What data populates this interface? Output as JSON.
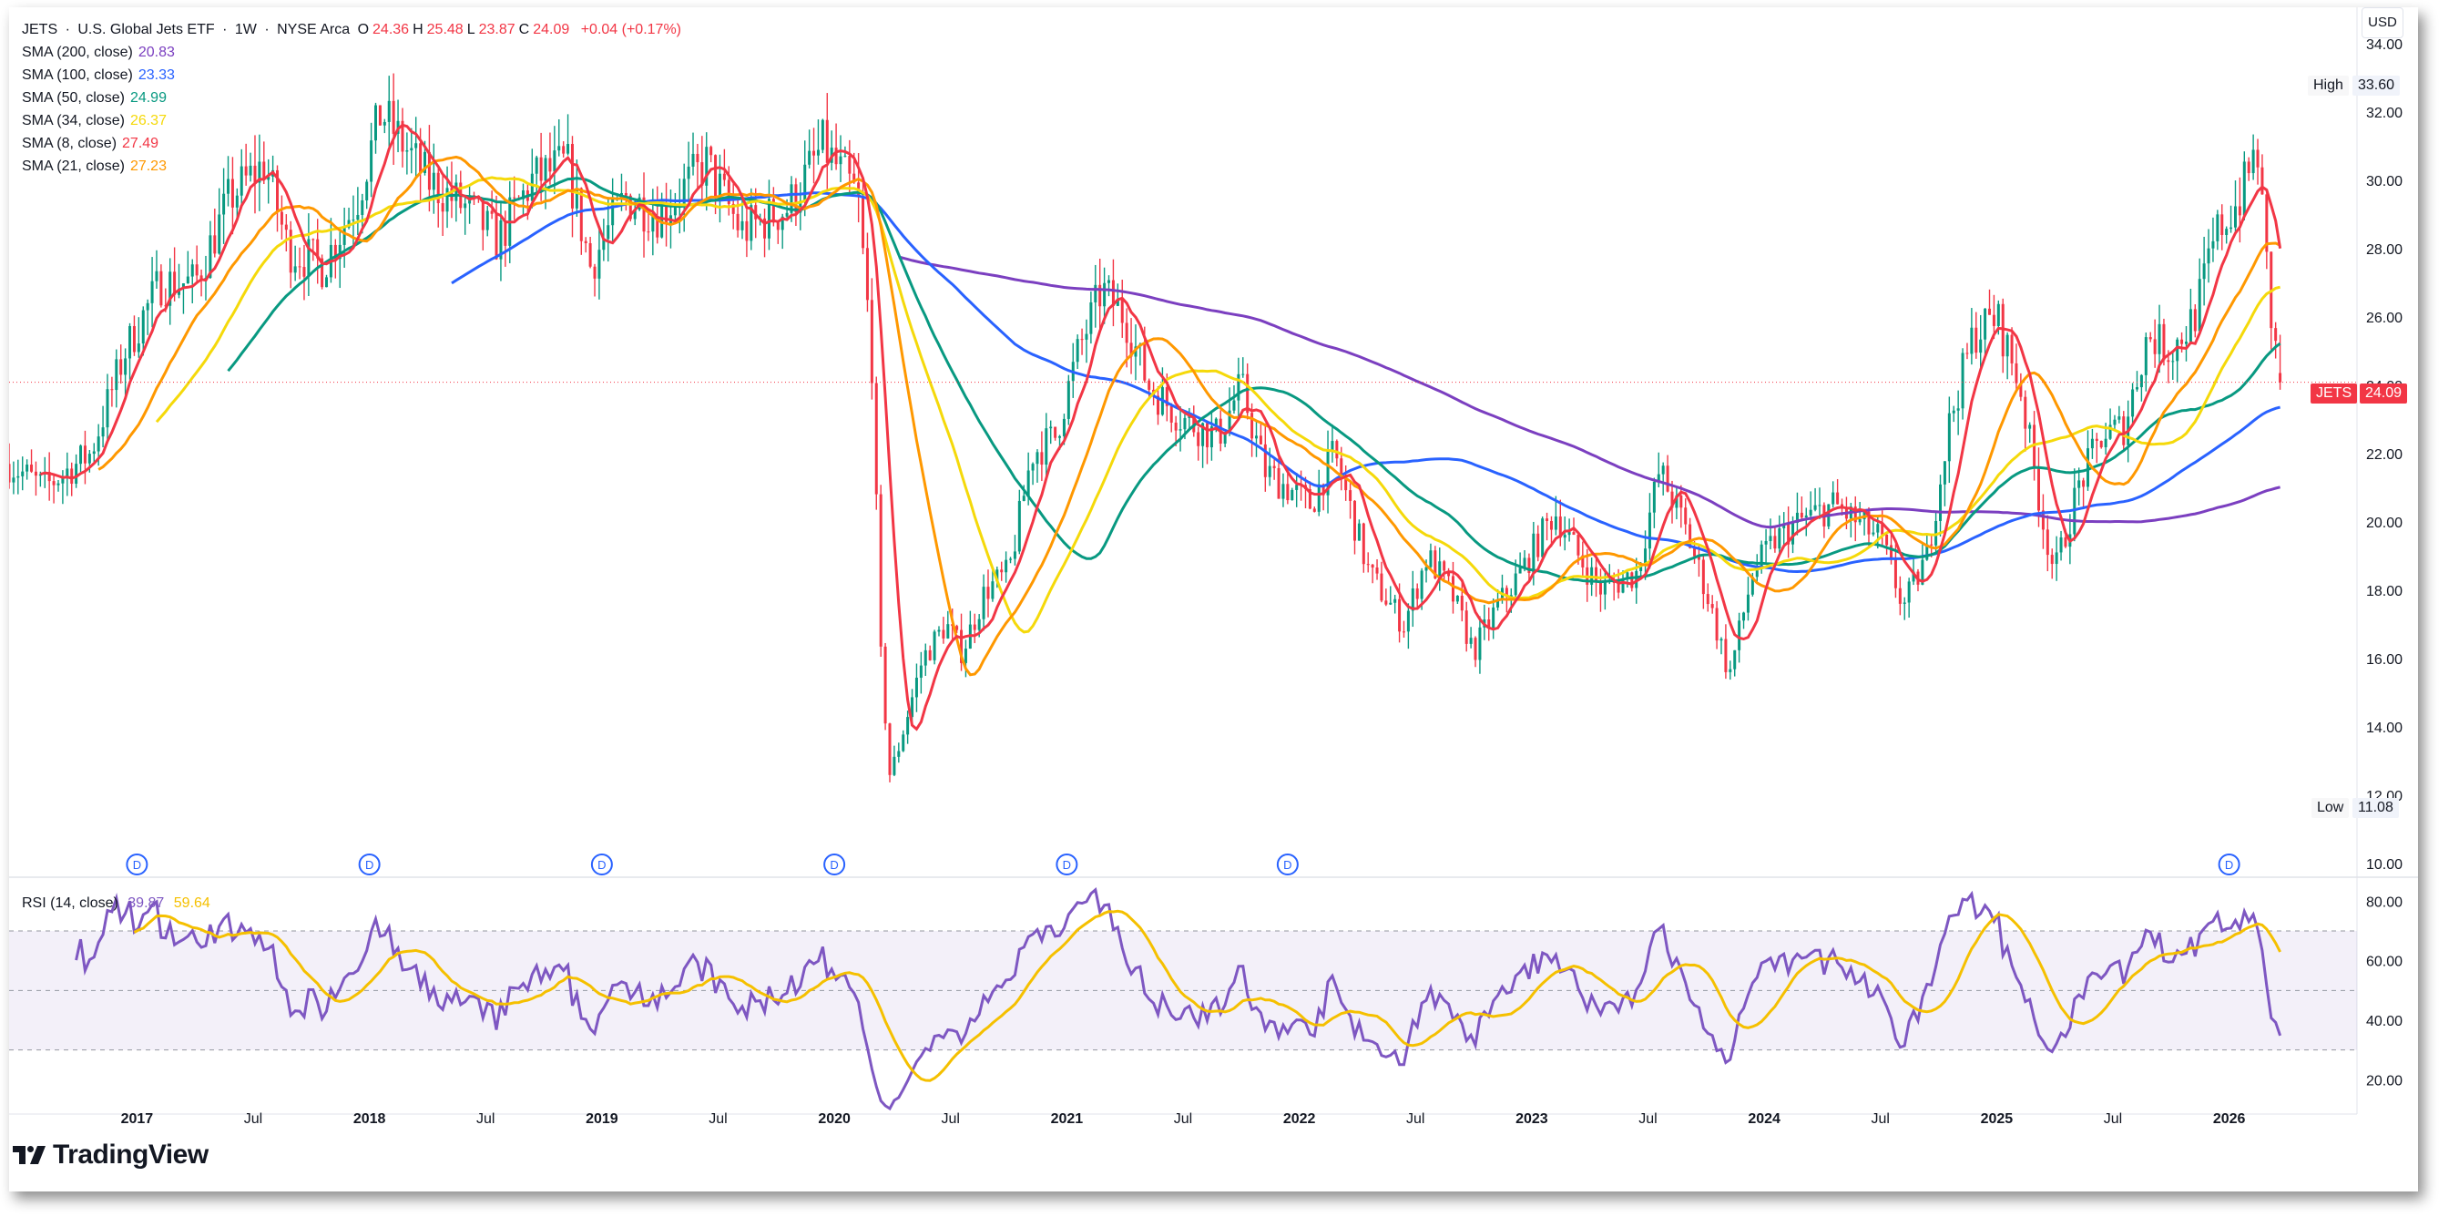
{
  "header": {
    "symbol": "JETS",
    "name": "U.S. Global Jets ETF",
    "interval": "1W",
    "exchange": "NYSE Arca",
    "ohlc": [
      {
        "key": "O",
        "value": "24.36"
      },
      {
        "key": "H",
        "value": "25.48"
      },
      {
        "key": "L",
        "value": "23.87"
      },
      {
        "key": "C",
        "value": "24.09"
      }
    ],
    "change": "+0.04 (+0.17%)",
    "currency": "USD"
  },
  "indicators": [
    {
      "label": "SMA (200, close)",
      "value": "20.83",
      "color": "#7b3fc0"
    },
    {
      "label": "SMA (100, close)",
      "value": "23.33",
      "color": "#2962ff"
    },
    {
      "label": "SMA (50, close)",
      "value": "24.99",
      "color": "#089981"
    },
    {
      "label": "SMA (34, close)",
      "value": "26.37",
      "color": "#f5d90a"
    },
    {
      "label": "SMA (8, close)",
      "value": "27.49",
      "color": "#f23645"
    },
    {
      "label": "SMA (21, close)",
      "value": "27.23",
      "color": "#ff9800"
    }
  ],
  "rsi_legend": {
    "label": "RSI (14, close)",
    "value1": "39.87",
    "value2": "59.64",
    "color1": "#7e57c2",
    "color2": "#f5c000"
  },
  "price_labels": {
    "high": {
      "label": "High",
      "value": "33.60"
    },
    "last": {
      "label": "JETS",
      "value": "24.09"
    },
    "low": {
      "label": "Low",
      "value": "11.08"
    }
  },
  "dividend_marker": "D",
  "brand": "TradingView",
  "chart_data": {
    "type": "candlestick",
    "title": "JETS · U.S. Global Jets ETF · 1W · NYSE Arca",
    "ylim": [
      10,
      34
    ],
    "y_ticks": [
      "10.00",
      "12.00",
      "14.00",
      "16.00",
      "18.00",
      "20.00",
      "22.00",
      "24.00",
      "26.00",
      "28.00",
      "30.00",
      "32.00",
      "34.00"
    ],
    "x_ticks": [
      "2017",
      "Jul",
      "2018",
      "Jul",
      "2019",
      "Jul",
      "2020",
      "Jul",
      "2021",
      "Jul",
      "2022",
      "Jul",
      "2023",
      "Jul",
      "2024",
      "Jul",
      "2025",
      "Jul",
      "2026"
    ],
    "x_range": [
      2016.45,
      2026.55
    ],
    "close_anchors": [
      [
        2016.45,
        21.7
      ],
      [
        2016.6,
        21.0
      ],
      [
        2016.8,
        22.0
      ],
      [
        2016.95,
        25.0
      ],
      [
        2017.1,
        27.0
      ],
      [
        2017.25,
        27.0
      ],
      [
        2017.4,
        29.5
      ],
      [
        2017.55,
        30.5
      ],
      [
        2017.65,
        28.0
      ],
      [
        2017.8,
        27.5
      ],
      [
        2017.95,
        29.5
      ],
      [
        2018.05,
        32.0
      ],
      [
        2018.15,
        31.0
      ],
      [
        2018.25,
        30.0
      ],
      [
        2018.45,
        29.0
      ],
      [
        2018.55,
        28.2
      ],
      [
        2018.7,
        30.0
      ],
      [
        2018.85,
        30.5
      ],
      [
        2018.95,
        27.5
      ],
      [
        2019.1,
        29.5
      ],
      [
        2019.25,
        29.0
      ],
      [
        2019.45,
        30.5
      ],
      [
        2019.6,
        28.5
      ],
      [
        2019.8,
        29.2
      ],
      [
        2019.95,
        31.0
      ],
      [
        2020.1,
        29.5
      ],
      [
        2020.16,
        25.0
      ],
      [
        2020.2,
        16.0
      ],
      [
        2020.24,
        12.5
      ],
      [
        2020.3,
        14.0
      ],
      [
        2020.38,
        16.0
      ],
      [
        2020.48,
        17.0
      ],
      [
        2020.55,
        16.2
      ],
      [
        2020.65,
        18.0
      ],
      [
        2020.75,
        18.5
      ],
      [
        2020.85,
        22.0
      ],
      [
        2020.95,
        22.5
      ],
      [
        2021.05,
        25.0
      ],
      [
        2021.15,
        26.8
      ],
      [
        2021.25,
        26.0
      ],
      [
        2021.35,
        24.0
      ],
      [
        2021.5,
        23.0
      ],
      [
        2021.65,
        22.5
      ],
      [
        2021.75,
        24.0
      ],
      [
        2021.85,
        21.5
      ],
      [
        2021.95,
        21.0
      ],
      [
        2022.05,
        20.5
      ],
      [
        2022.15,
        22.0
      ],
      [
        2022.3,
        18.5
      ],
      [
        2022.45,
        17.0
      ],
      [
        2022.55,
        19.0
      ],
      [
        2022.65,
        18.0
      ],
      [
        2022.75,
        16.2
      ],
      [
        2022.85,
        17.5
      ],
      [
        2022.95,
        18.5
      ],
      [
        2023.1,
        20.3
      ],
      [
        2023.2,
        19.0
      ],
      [
        2023.3,
        18.0
      ],
      [
        2023.45,
        18.5
      ],
      [
        2023.55,
        21.5
      ],
      [
        2023.65,
        20.0
      ],
      [
        2023.75,
        18.0
      ],
      [
        2023.85,
        15.5
      ],
      [
        2023.95,
        18.5
      ],
      [
        2024.05,
        19.5
      ],
      [
        2024.15,
        20.0
      ],
      [
        2024.3,
        20.5
      ],
      [
        2024.4,
        20.0
      ],
      [
        2024.5,
        19.5
      ],
      [
        2024.6,
        17.5
      ],
      [
        2024.7,
        19.0
      ],
      [
        2024.8,
        23.0
      ],
      [
        2024.9,
        25.5
      ],
      [
        2025.0,
        26.0
      ],
      [
        2025.1,
        24.0
      ],
      [
        2025.2,
        20.0
      ],
      [
        2025.25,
        18.5
      ],
      [
        2025.35,
        21.0
      ],
      [
        2025.45,
        22.5
      ],
      [
        2025.55,
        22.8
      ],
      [
        2025.65,
        25.5
      ],
      [
        2025.75,
        25.0
      ],
      [
        2025.85,
        26.0
      ],
      [
        2025.95,
        28.5
      ],
      [
        2026.05,
        29.5
      ],
      [
        2026.12,
        31.0
      ],
      [
        2026.18,
        26.0
      ],
      [
        2026.22,
        24.09
      ]
    ],
    "rsi": {
      "ylim": [
        10,
        85
      ],
      "y_ticks": [
        "20.00",
        "40.00",
        "60.00",
        "80.00"
      ],
      "bands": [
        30,
        50,
        70
      ]
    }
  }
}
